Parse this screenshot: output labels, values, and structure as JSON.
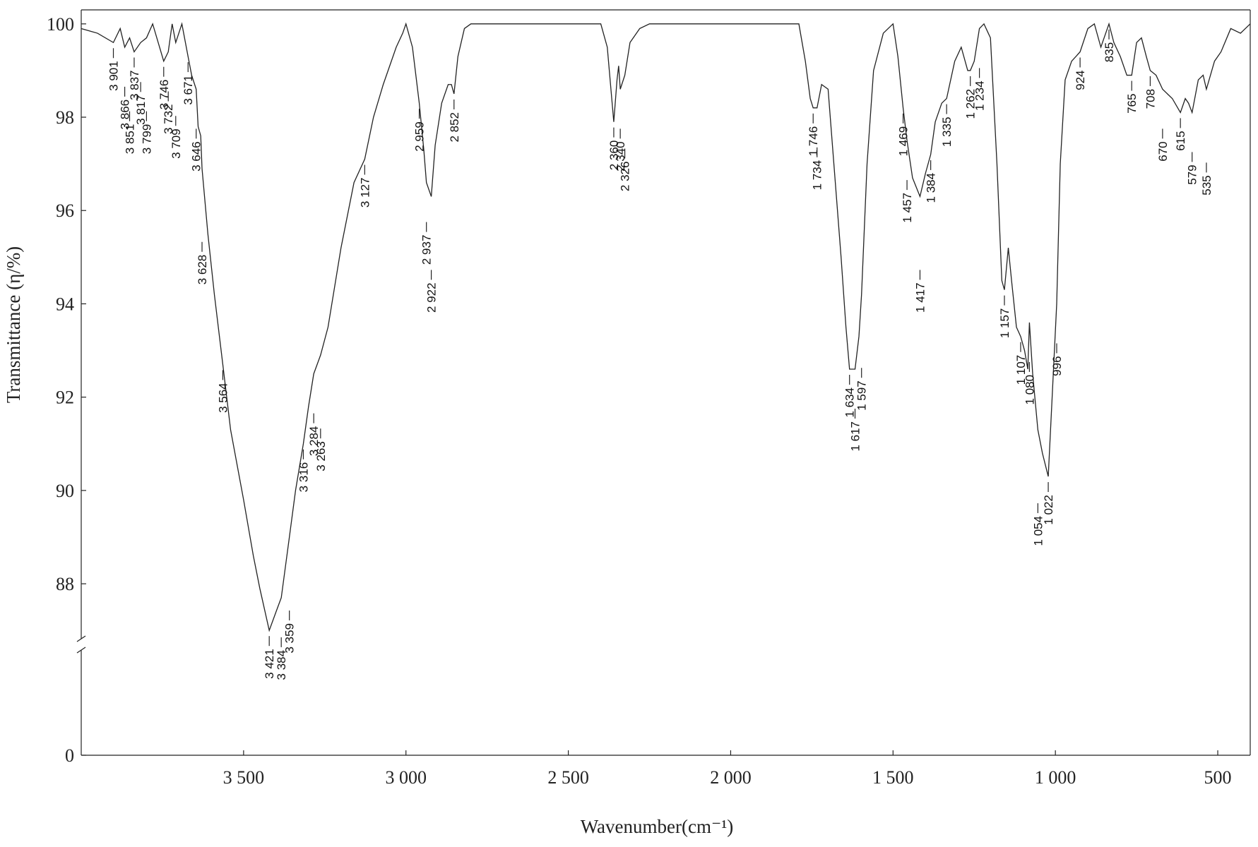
{
  "chart_data": {
    "type": "line",
    "x_label": "Wavenumber(cm⁻¹)",
    "y_label": "Transmittance (η/%)",
    "xlim": [
      4000,
      400
    ],
    "ylim": [
      0,
      100.3
    ],
    "y_axis_break": 86.7,
    "xticks": [
      {
        "value": 3500,
        "label": "3 500"
      },
      {
        "value": 3000,
        "label": "3 000"
      },
      {
        "value": 2500,
        "label": "2 500"
      },
      {
        "value": 2000,
        "label": "2 000"
      },
      {
        "value": 1500,
        "label": "1 500"
      },
      {
        "value": 1000,
        "label": "1 000"
      },
      500
    ],
    "yticks": [
      0,
      88,
      90,
      92,
      94,
      96,
      98,
      100
    ],
    "color": "#222222",
    "x": [
      4000,
      3950,
      3901,
      3880,
      3866,
      3851,
      3837,
      3817,
      3799,
      3780,
      3746,
      3732,
      3720,
      3709,
      3690,
      3671,
      3660,
      3646,
      3640,
      3632,
      3628,
      3610,
      3590,
      3564,
      3540,
      3500,
      3470,
      3450,
      3421,
      3400,
      3384,
      3359,
      3340,
      3316,
      3300,
      3284,
      3263,
      3240,
      3200,
      3160,
      3127,
      3100,
      3070,
      3030,
      3010,
      3000,
      2980,
      2959,
      2945,
      2937,
      2922,
      2910,
      2890,
      2870,
      2860,
      2852,
      2840,
      2820,
      2800,
      2400,
      2380,
      2360,
      2350,
      2345,
      2340,
      2326,
      2310,
      2280,
      2250,
      1790,
      1770,
      1755,
      1746,
      1734,
      1720,
      1700,
      1680,
      1660,
      1645,
      1634,
      1617,
      1605,
      1597,
      1580,
      1560,
      1530,
      1500,
      1485,
      1469,
      1457,
      1440,
      1417,
      1400,
      1384,
      1370,
      1350,
      1335,
      1310,
      1290,
      1270,
      1262,
      1250,
      1234,
      1220,
      1200,
      1180,
      1165,
      1157,
      1145,
      1135,
      1120,
      1107,
      1095,
      1085,
      1080,
      1070,
      1054,
      1040,
      1022,
      1010,
      996,
      985,
      970,
      950,
      924,
      900,
      880,
      860,
      835,
      820,
      800,
      780,
      765,
      750,
      735,
      720,
      708,
      690,
      670,
      640,
      615,
      600,
      590,
      579,
      560,
      545,
      535,
      510,
      490,
      460,
      430,
      400
    ],
    "values": [
      99.9,
      99.8,
      99.6,
      99.9,
      99.5,
      99.7,
      99.4,
      99.6,
      99.7,
      100,
      99.2,
      99.4,
      100,
      99.6,
      100,
      99.3,
      98.9,
      98.6,
      97.8,
      97.6,
      96.9,
      95.5,
      94.2,
      92.7,
      91.3,
      89.8,
      88.6,
      87.9,
      87.0,
      87.4,
      87.7,
      89.0,
      90.0,
      91.0,
      91.8,
      92.5,
      92.9,
      93.5,
      95.2,
      96.6,
      97.1,
      98.0,
      98.7,
      99.5,
      99.8,
      100.0,
      99.5,
      98.3,
      97.3,
      96.6,
      96.3,
      97.4,
      98.3,
      98.7,
      98.7,
      98.5,
      99.3,
      99.9,
      100,
      100,
      99.5,
      97.9,
      98.8,
      99.1,
      98.6,
      98.9,
      99.6,
      99.9,
      100,
      100,
      99.2,
      98.4,
      98.2,
      98.2,
      98.7,
      98.6,
      96.8,
      95.0,
      93.5,
      92.6,
      92.6,
      93.3,
      94.2,
      97.0,
      99.0,
      99.8,
      100,
      99.3,
      98.2,
      97.5,
      96.7,
      96.3,
      96.8,
      97.2,
      97.9,
      98.3,
      98.4,
      99.2,
      99.5,
      99.0,
      99.0,
      99.2,
      99.9,
      100,
      99.7,
      97.0,
      94.5,
      94.3,
      95.2,
      94.5,
      93.5,
      93.3,
      93.0,
      92.6,
      93.6,
      92.5,
      91.3,
      90.8,
      90.3,
      92.0,
      94.0,
      97.0,
      98.8,
      99.2,
      99.4,
      99.9,
      100,
      99.5,
      100,
      99.6,
      99.3,
      98.9,
      98.9,
      99.6,
      99.7,
      99.3,
      99.0,
      98.9,
      98.6,
      98.4,
      98.1,
      98.4,
      98.3,
      98.1,
      98.8,
      98.9,
      98.6,
      99.2,
      99.4,
      99.9,
      99.8,
      100
    ],
    "annotations": [
      {
        "value": 3901,
        "label": "3 901"
      },
      {
        "value": 3866,
        "label": "3 866"
      },
      {
        "value": 3851,
        "label": "3 851"
      },
      {
        "value": 3837,
        "label": "3 837"
      },
      {
        "value": 3817,
        "label": "3 817"
      },
      {
        "value": 3799,
        "label": "3 799"
      },
      {
        "value": 3746,
        "label": "3 746"
      },
      {
        "value": 3732,
        "label": "3 732"
      },
      {
        "value": 3709,
        "label": "3 709"
      },
      {
        "value": 3671,
        "label": "3 671"
      },
      {
        "value": 3646,
        "label": "3 646"
      },
      {
        "value": 3628,
        "label": "3 628"
      },
      {
        "value": 3564,
        "label": "3 564"
      },
      {
        "value": 3421,
        "label": "3 421"
      },
      {
        "value": 3384,
        "label": "3 384"
      },
      {
        "value": 3359,
        "label": "3 359"
      },
      {
        "value": 3316,
        "label": "3 316"
      },
      {
        "value": 3284,
        "label": "3 284"
      },
      {
        "value": 3263,
        "label": "3 263"
      },
      {
        "value": 3127,
        "label": "3 127"
      },
      {
        "value": 2959,
        "label": "2 959"
      },
      {
        "value": 2937,
        "label": "2 937"
      },
      {
        "value": 2922,
        "label": "2 922"
      },
      {
        "value": 2852,
        "label": "2 852"
      },
      {
        "value": 2360,
        "label": "2 360"
      },
      {
        "value": 2340,
        "label": "2 340"
      },
      {
        "value": 2326,
        "label": "2 326"
      },
      {
        "value": 1746,
        "label": "1 746"
      },
      {
        "value": 1734,
        "label": "1 734"
      },
      {
        "value": 1634,
        "label": "1 634"
      },
      {
        "value": 1617,
        "label": "1 617"
      },
      {
        "value": 1597,
        "label": "1 597"
      },
      {
        "value": 1469,
        "label": "1 469"
      },
      {
        "value": 1457,
        "label": "1 457"
      },
      {
        "value": 1417,
        "label": "1 417"
      },
      {
        "value": 1384,
        "label": "1 384"
      },
      {
        "value": 1335,
        "label": "1 335"
      },
      {
        "value": 1262,
        "label": "1 262"
      },
      {
        "value": 1234,
        "label": "1 234"
      },
      {
        "value": 1157,
        "label": "1 157"
      },
      {
        "value": 1107,
        "label": "1 107"
      },
      {
        "value": 1080,
        "label": "1 080"
      },
      {
        "value": 1054,
        "label": "1 054"
      },
      {
        "value": 1022,
        "label": "1 022"
      },
      996,
      924,
      835,
      765,
      708,
      670,
      615,
      579,
      535
    ]
  }
}
